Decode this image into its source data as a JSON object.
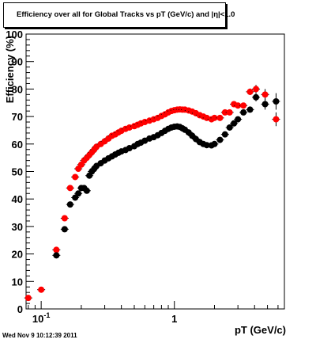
{
  "title": "Efficiency over all for Global Tracks vs pT (GeV/c) and |η|<1.0",
  "footer": "Wed Nov  9 10:12:39 2011",
  "chart_data": {
    "type": "scatter",
    "title": "Efficiency over all for Global Tracks vs pT (GeV/c) and |η|<1.0",
    "xlabel": "pT (GeV/c)",
    "ylabel": "Efficiency (%)",
    "xscale": "log",
    "xlim": [
      0.077,
      6.7
    ],
    "ylim": [
      0,
      100
    ],
    "x_tick_labels": [
      {
        "value": 0.1,
        "base": "10",
        "exp": "-1"
      },
      {
        "value": 1,
        "base": "1",
        "exp": ""
      }
    ],
    "y_ticks": [
      0,
      10,
      20,
      30,
      40,
      50,
      60,
      70,
      80,
      90,
      100
    ],
    "grid": false,
    "legend": "none",
    "series": [
      {
        "color": "#ff0000",
        "points": [
          [
            0.08,
            4
          ],
          [
            0.1,
            7
          ],
          [
            0.13,
            21.5
          ],
          [
            0.15,
            33
          ],
          [
            0.165,
            44
          ],
          [
            0.18,
            48
          ],
          [
            0.19,
            51
          ],
          [
            0.2,
            52.5
          ],
          [
            0.21,
            54
          ],
          [
            0.22,
            55
          ],
          [
            0.23,
            56
          ],
          [
            0.24,
            57
          ],
          [
            0.25,
            58
          ],
          [
            0.26,
            59
          ],
          [
            0.28,
            60
          ],
          [
            0.3,
            61
          ],
          [
            0.32,
            62
          ],
          [
            0.34,
            63
          ],
          [
            0.36,
            63.5
          ],
          [
            0.38,
            64.2
          ],
          [
            0.4,
            64.8
          ],
          [
            0.43,
            65.5
          ],
          [
            0.46,
            66
          ],
          [
            0.5,
            66.5
          ],
          [
            0.53,
            67
          ],
          [
            0.56,
            67.5
          ],
          [
            0.6,
            68
          ],
          [
            0.65,
            68.5
          ],
          [
            0.7,
            69
          ],
          [
            0.75,
            69.5
          ],
          [
            0.8,
            70.2
          ],
          [
            0.85,
            70.8
          ],
          [
            0.9,
            71.5
          ],
          [
            0.95,
            72
          ],
          [
            1.0,
            72.3
          ],
          [
            1.05,
            72.5
          ],
          [
            1.1,
            72.6
          ],
          [
            1.15,
            72.5
          ],
          [
            1.2,
            72.5
          ],
          [
            1.28,
            72.2
          ],
          [
            1.36,
            71.8
          ],
          [
            1.45,
            71.2
          ],
          [
            1.55,
            70.5
          ],
          [
            1.65,
            70
          ],
          [
            1.75,
            69.5
          ],
          [
            1.9,
            69
          ],
          [
            2.0,
            69.5
          ],
          [
            2.2,
            69.5
          ],
          [
            2.4,
            71.5
          ],
          [
            2.6,
            71.5
          ],
          [
            2.8,
            74.5
          ],
          [
            3.0,
            74
          ],
          [
            3.3,
            74
          ],
          [
            3.7,
            79
          ],
          [
            4.1,
            80
          ],
          [
            4.8,
            78
          ],
          [
            5.8,
            69
          ]
        ],
        "yerr": [
          0.5,
          0.8,
          0.5,
          0.5,
          0.5,
          0.4,
          0.4,
          0.3,
          0.3,
          0.3,
          0.3,
          0.3,
          0.3,
          0.3,
          0.3,
          0.3,
          0.3,
          0.3,
          0.3,
          0.3,
          0.3,
          0.3,
          0.3,
          0.3,
          0.3,
          0.3,
          0.3,
          0.3,
          0.3,
          0.3,
          0.3,
          0.3,
          0.3,
          0.3,
          0.3,
          0.3,
          0.3,
          0.3,
          0.3,
          0.3,
          0.3,
          0.3,
          0.3,
          0.3,
          0.3,
          0.3,
          0.5,
          0.5,
          0.5,
          0.6,
          0.8,
          0.8,
          1.0,
          1.2,
          1.5,
          2.0,
          2.5
        ]
      },
      {
        "color": "#000000",
        "points": [
          [
            0.13,
            19.5
          ],
          [
            0.15,
            29
          ],
          [
            0.165,
            38
          ],
          [
            0.18,
            40.5
          ],
          [
            0.19,
            42
          ],
          [
            0.2,
            44
          ],
          [
            0.21,
            44
          ],
          [
            0.22,
            43
          ],
          [
            0.23,
            48.5
          ],
          [
            0.24,
            50
          ],
          [
            0.25,
            51
          ],
          [
            0.26,
            52
          ],
          [
            0.28,
            53
          ],
          [
            0.3,
            54
          ],
          [
            0.32,
            54.8
          ],
          [
            0.34,
            55.5
          ],
          [
            0.36,
            56.2
          ],
          [
            0.38,
            56.8
          ],
          [
            0.4,
            57.3
          ],
          [
            0.43,
            57.8
          ],
          [
            0.46,
            58.5
          ],
          [
            0.5,
            59.2
          ],
          [
            0.53,
            60
          ],
          [
            0.56,
            60.5
          ],
          [
            0.6,
            61.2
          ],
          [
            0.65,
            62
          ],
          [
            0.7,
            62.5
          ],
          [
            0.75,
            63.2
          ],
          [
            0.8,
            64
          ],
          [
            0.85,
            64.8
          ],
          [
            0.9,
            65.5
          ],
          [
            0.95,
            66
          ],
          [
            1.0,
            66.3
          ],
          [
            1.05,
            66.4
          ],
          [
            1.1,
            66.2
          ],
          [
            1.15,
            65.7
          ],
          [
            1.2,
            65.2
          ],
          [
            1.28,
            64.2
          ],
          [
            1.36,
            63
          ],
          [
            1.45,
            61.8
          ],
          [
            1.55,
            60.7
          ],
          [
            1.65,
            60
          ],
          [
            1.75,
            59.6
          ],
          [
            1.9,
            59.5
          ],
          [
            2.0,
            60
          ],
          [
            2.2,
            61.5
          ],
          [
            2.4,
            63.5
          ],
          [
            2.6,
            66
          ],
          [
            2.8,
            67.5
          ],
          [
            3.0,
            69
          ],
          [
            3.3,
            71.5
          ],
          [
            3.7,
            72.5
          ],
          [
            4.1,
            77
          ],
          [
            4.8,
            74.5
          ],
          [
            5.8,
            75.5
          ]
        ],
        "yerr": [
          0.5,
          0.5,
          0.5,
          0.4,
          0.4,
          0.4,
          0.4,
          0.4,
          0.4,
          0.3,
          0.3,
          0.3,
          0.3,
          0.3,
          0.3,
          0.3,
          0.3,
          0.3,
          0.3,
          0.3,
          0.3,
          0.3,
          0.3,
          0.3,
          0.3,
          0.3,
          0.3,
          0.3,
          0.3,
          0.3,
          0.3,
          0.3,
          0.3,
          0.3,
          0.3,
          0.3,
          0.3,
          0.3,
          0.3,
          0.3,
          0.3,
          0.3,
          0.3,
          0.3,
          0.5,
          0.5,
          0.5,
          0.6,
          0.6,
          0.8,
          0.8,
          1.0,
          1.5,
          2.0,
          3.0
        ]
      }
    ]
  }
}
